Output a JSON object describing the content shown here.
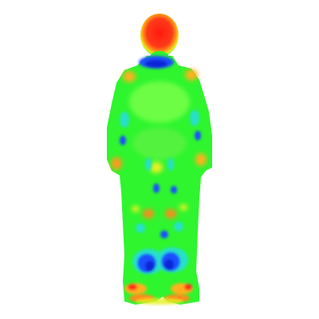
{
  "image": {
    "subject": "thermal-body-scan",
    "background": "#ffffff",
    "colors": {
      "body": "#2ef52e",
      "body_light": "#7cff4a",
      "cyan": "#26e0c8",
      "blue": "#1a50ff",
      "blue_deep": "#0a28d8",
      "yellow": "#e6f020",
      "orange": "#ff8a1a",
      "red": "#ff2a1a"
    }
  }
}
